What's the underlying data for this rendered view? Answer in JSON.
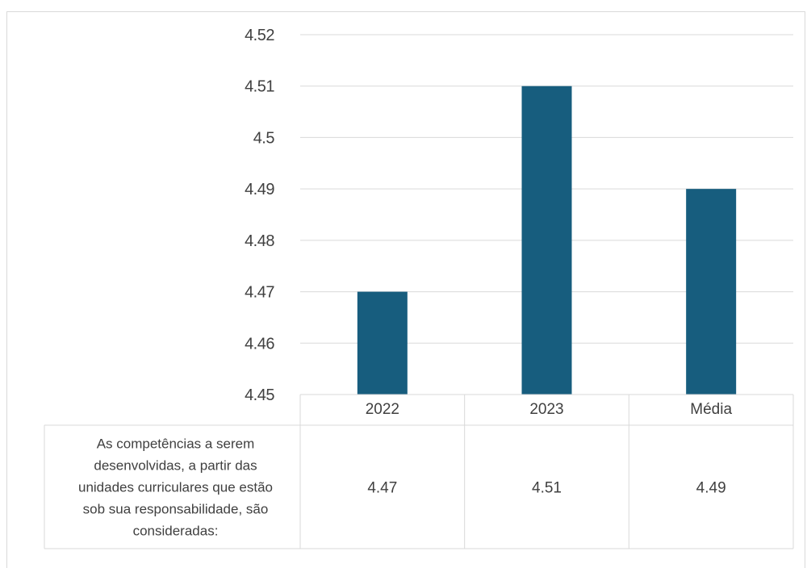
{
  "chart_data": {
    "type": "bar",
    "categories": [
      "2022",
      "2023",
      "Média"
    ],
    "series": [
      {
        "name": "As competências a serem desenvolvidas, a partir das unidades curriculares que estão sob sua responsabilidade, são consideradas:",
        "values": [
          4.47,
          4.51,
          4.49
        ]
      }
    ],
    "ylim": [
      4.45,
      4.52
    ],
    "yticks": [
      "4.45",
      "4.46",
      "4.47",
      "4.48",
      "4.49",
      "4.5",
      "4.51",
      "4.52"
    ],
    "grid": true,
    "data_table": {
      "row_label_lines": [
        "As competências a serem",
        "desenvolvidas, a partir das",
        "unidades curriculares que estão",
        "sob sua responsabilidade, são",
        "consideradas:"
      ],
      "cells": [
        "4.47",
        "4.51",
        "4.49"
      ]
    },
    "colors": {
      "bar": "#175d7e",
      "grid": "#d9d9d9",
      "text": "#404040"
    }
  }
}
